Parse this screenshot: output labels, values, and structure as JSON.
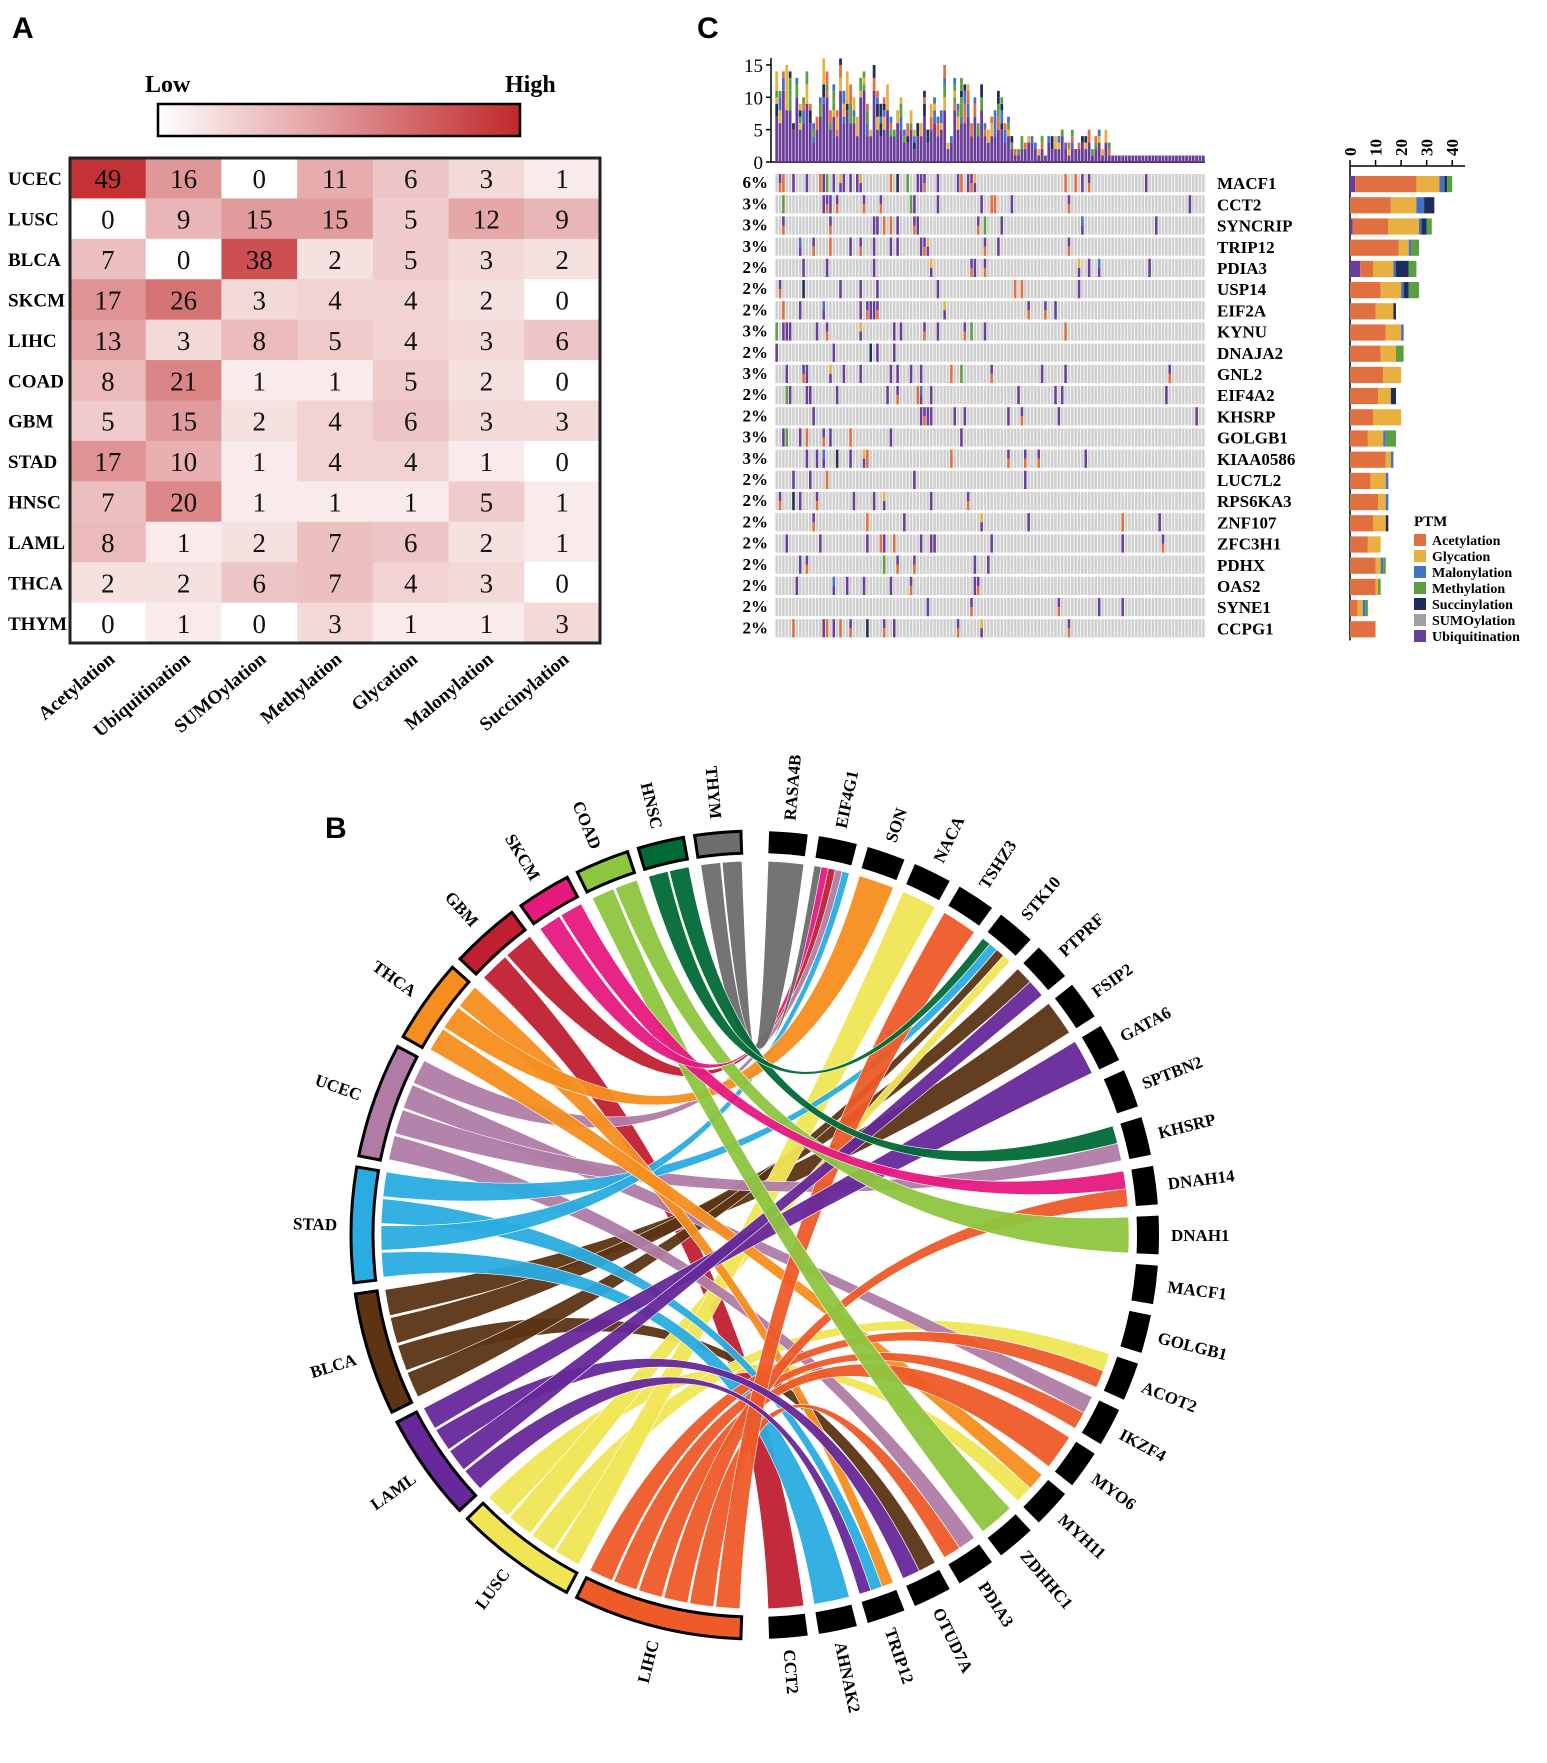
{
  "panels": {
    "a": "A",
    "b": "B",
    "c": "C"
  },
  "chart_data": [
    {
      "type": "heatmap",
      "panel": "A",
      "legend": {
        "low": "Low",
        "high": "High",
        "low_color": "#ffffff",
        "high_color": "#c0282b"
      },
      "rows": [
        "UCEC",
        "LUSC",
        "BLCA",
        "SKCM",
        "LIHC",
        "COAD",
        "GBM",
        "STAD",
        "HNSC",
        "LAML",
        "THCA",
        "THYM"
      ],
      "columns": [
        "Acetylation",
        "Ubiquitination",
        "SUMOylation",
        "Methylation",
        "Glycation",
        "Malonylation",
        "Succinylation"
      ],
      "values": [
        [
          49,
          16,
          0,
          11,
          6,
          3,
          1
        ],
        [
          0,
          9,
          15,
          15,
          5,
          12,
          9
        ],
        [
          7,
          0,
          38,
          2,
          5,
          3,
          2
        ],
        [
          17,
          26,
          3,
          4,
          4,
          2,
          0
        ],
        [
          13,
          3,
          8,
          5,
          4,
          3,
          6
        ],
        [
          8,
          21,
          1,
          1,
          5,
          2,
          0
        ],
        [
          5,
          15,
          2,
          4,
          6,
          3,
          3
        ],
        [
          17,
          10,
          1,
          4,
          4,
          1,
          0
        ],
        [
          7,
          20,
          1,
          1,
          1,
          5,
          1
        ],
        [
          8,
          1,
          2,
          7,
          6,
          2,
          1
        ],
        [
          2,
          2,
          6,
          7,
          4,
          3,
          0
        ],
        [
          0,
          1,
          0,
          3,
          1,
          1,
          3
        ]
      ]
    },
    {
      "type": "oncoplot",
      "panel": "C",
      "genes": [
        "MACF1",
        "CCT2",
        "SYNCRIP",
        "TRIP12",
        "PDIA3",
        "USP14",
        "EIF2A",
        "KYNU",
        "DNAJA2",
        "GNL2",
        "EIF4A2",
        "KHSRP",
        "GOLGB1",
        "KIAA0586",
        "LUC7L2",
        "RPS6KA3",
        "ZNF107",
        "ZFC3H1",
        "PDHX",
        "OAS2",
        "SYNE1",
        "CCPG1"
      ],
      "percentages": [
        "6%",
        "3%",
        "3%",
        "3%",
        "2%",
        "2%",
        "2%",
        "3%",
        "2%",
        "3%",
        "2%",
        "2%",
        "3%",
        "3%",
        "2%",
        "2%",
        "2%",
        "2%",
        "2%",
        "2%",
        "2%",
        "2%"
      ],
      "top_axis_ticks": [
        0,
        5,
        10,
        15
      ],
      "right_axis_ticks": [
        0,
        10,
        20,
        30,
        40
      ],
      "legend_title": "PTM",
      "legend": [
        {
          "name": "Acetylation",
          "color": "#e07040"
        },
        {
          "name": "Glycation",
          "color": "#e8b040"
        },
        {
          "name": "Malonylation",
          "color": "#4472c4"
        },
        {
          "name": "Methylation",
          "color": "#5aa040"
        },
        {
          "name": "Succinylation",
          "color": "#1f2d5a"
        },
        {
          "name": "SUMOylation",
          "color": "#a0a0a0"
        },
        {
          "name": "Ubiquitination",
          "color": "#6a3d9a"
        }
      ],
      "gene_totals": [
        [
          24,
          9,
          2,
          2,
          1,
          0,
          2
        ],
        [
          16,
          10,
          3,
          0,
          4,
          0,
          0
        ],
        [
          14,
          12,
          1,
          2,
          2,
          0,
          1
        ],
        [
          19,
          4,
          1,
          3,
          0,
          0,
          0
        ],
        [
          5,
          8,
          1,
          3,
          5,
          0,
          4
        ],
        [
          12,
          8,
          1,
          4,
          2,
          0,
          0
        ],
        [
          10,
          7,
          0,
          0,
          1,
          0,
          0
        ],
        [
          14,
          6,
          1,
          0,
          0,
          0,
          0
        ],
        [
          12,
          6,
          0,
          3,
          0,
          0,
          0
        ],
        [
          13,
          7,
          0,
          0,
          0,
          0,
          0
        ],
        [
          11,
          5,
          0,
          0,
          2,
          0,
          0
        ],
        [
          9,
          11,
          0,
          0,
          0,
          0,
          0
        ],
        [
          7,
          6,
          1,
          4,
          0,
          0,
          0
        ],
        [
          14,
          2,
          1,
          0,
          0,
          0,
          0
        ],
        [
          8,
          6,
          1,
          0,
          0,
          0,
          0
        ],
        [
          11,
          3,
          1,
          0,
          0,
          0,
          0
        ],
        [
          9,
          5,
          0,
          0,
          1,
          0,
          0
        ],
        [
          7,
          5,
          0,
          0,
          0,
          0,
          0
        ],
        [
          10,
          2,
          1,
          1,
          0,
          0,
          0
        ],
        [
          10,
          1,
          0,
          1,
          0,
          0,
          0
        ],
        [
          3,
          2,
          1,
          1,
          0,
          0,
          0
        ],
        [
          10,
          0,
          0,
          0,
          0,
          0,
          0
        ]
      ]
    },
    {
      "type": "chord",
      "panel": "B",
      "cancers": [
        {
          "name": "THYM",
          "color": "#6d6d6d"
        },
        {
          "name": "HNSC",
          "color": "#006a35"
        },
        {
          "name": "COAD",
          "color": "#8ec53f"
        },
        {
          "name": "SKCM",
          "color": "#e6197f"
        },
        {
          "name": "GBM",
          "color": "#c01f32"
        },
        {
          "name": "THCA",
          "color": "#f58e1f"
        },
        {
          "name": "UCEC",
          "color": "#b07ca6"
        },
        {
          "name": "STAD",
          "color": "#2aace2"
        },
        {
          "name": "BLCA",
          "color": "#5c3414"
        },
        {
          "name": "LAML",
          "color": "#66289a"
        },
        {
          "name": "LUSC",
          "color": "#f0e655"
        },
        {
          "name": "LIHC",
          "color": "#ee5a28"
        }
      ],
      "cancer_weights": [
        3,
        3,
        3.5,
        3.5,
        4.5,
        5.5,
        7.5,
        7.5,
        8,
        7,
        8,
        11
      ],
      "genes": [
        "RASA4B",
        "EIF4G1",
        "SON",
        "NACA",
        "TSHZ3",
        "STK10",
        "PTPRF",
        "FSIP2",
        "GATA6",
        "SPTBN2",
        "KHSRP",
        "DNAH14",
        "DNAH1",
        "MACF1",
        "GOLGB1",
        "ACOT2",
        "IKZF4",
        "MYO6",
        "MYH11",
        "ZDHHC1",
        "PDIA3",
        "OTUD7A",
        "TRIP12",
        "AHNAK2",
        "CCT2"
      ]
    }
  ]
}
